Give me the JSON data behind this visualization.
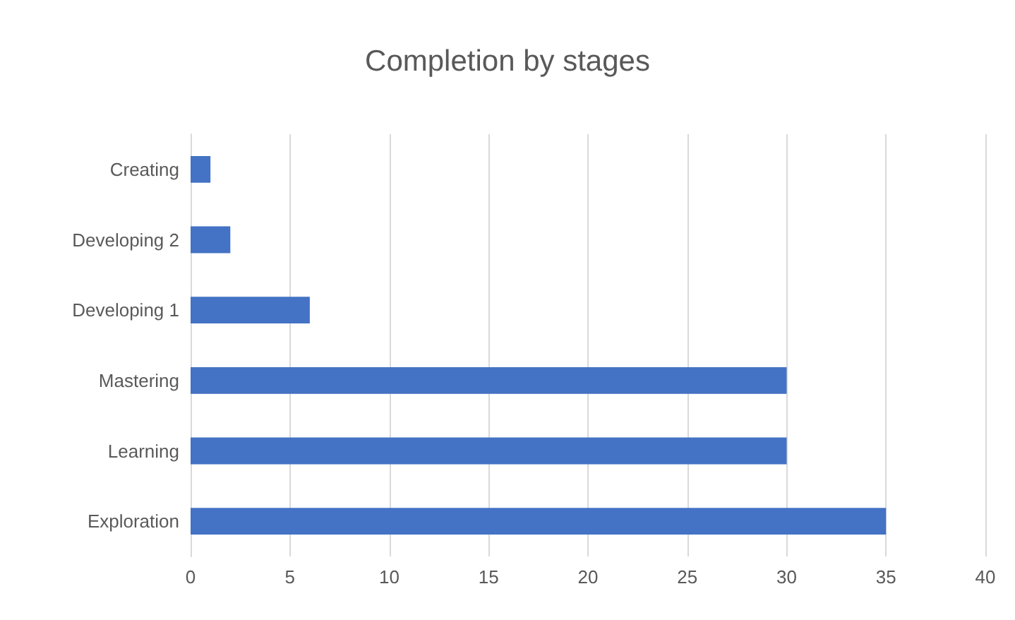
{
  "chart_data": {
    "type": "bar",
    "orientation": "horizontal",
    "title": "Completion by stages",
    "categories": [
      "Creating",
      "Developing 2",
      "Developing 1",
      "Mastering",
      "Learning",
      "Exploration"
    ],
    "values": [
      1,
      2,
      6,
      30,
      30,
      35
    ],
    "color": "#4472c4",
    "xlim": [
      0,
      40
    ],
    "xticks": [
      0,
      5,
      10,
      15,
      20,
      25,
      30,
      35,
      40
    ],
    "grid": "x"
  }
}
